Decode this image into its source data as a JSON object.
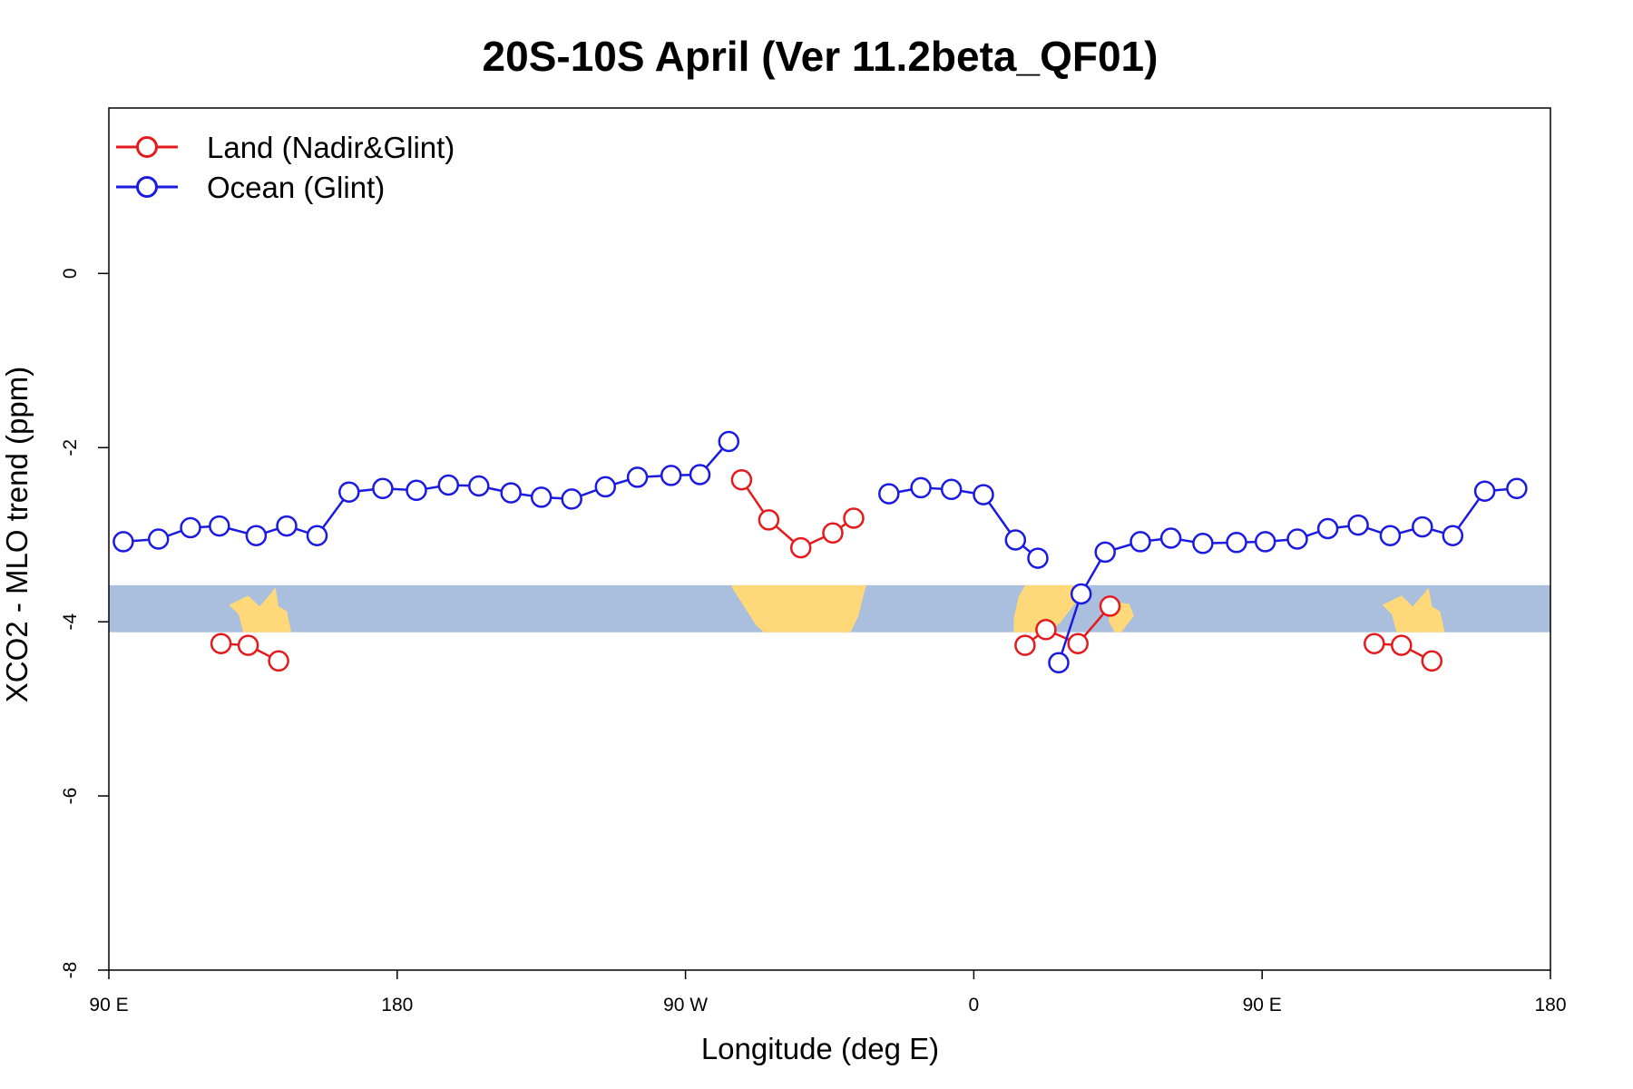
{
  "chart_data": {
    "type": "line",
    "title": "20S-10S April (Ver 11.2beta_QF01)",
    "xlabel": "Longitude (deg E)",
    "ylabel": "XCO2 - MLO trend (ppm)",
    "xlim": [
      90,
      540
    ],
    "ylim": [
      -8,
      1.9
    ],
    "x_ticks": [
      {
        "value": 90,
        "label": "90 E"
      },
      {
        "value": 180,
        "label": "180"
      },
      {
        "value": 270,
        "label": "90 W"
      },
      {
        "value": 360,
        "label": "0"
      },
      {
        "value": 450,
        "label": "90 E"
      },
      {
        "value": 540,
        "label": "180"
      }
    ],
    "y_ticks": [
      {
        "value": 0,
        "label": "0"
      },
      {
        "value": -2,
        "label": "-2"
      },
      {
        "value": -4,
        "label": "-4"
      },
      {
        "value": -6,
        "label": "-6"
      },
      {
        "value": -8,
        "label": "-8"
      }
    ],
    "legend": {
      "position": "top-left"
    },
    "map_strip": {
      "lat_range": "20S-10S",
      "y_top": -3.58,
      "y_bottom": -4.12,
      "ocean_color": "#a9bfdd",
      "land_color": "#ffd87a"
    },
    "series": [
      {
        "name": "Land (Nadir&Glint)",
        "color": "#e41a1c",
        "segments": [
          {
            "x": [
              125,
              133.5,
              143
            ],
            "y": [
              -4.25,
              -4.27,
              -4.45
            ]
          },
          {
            "x": [
              287.5,
              296,
              306,
              316,
              322.5
            ],
            "y": [
              -2.37,
              -2.83,
              -3.15,
              -2.98,
              -2.81
            ]
          },
          {
            "x": [
              376,
              382.5,
              392.5,
              402.5
            ],
            "y": [
              -4.27,
              -4.09,
              -4.25,
              -3.82
            ]
          },
          {
            "x": [
              485,
              493.5,
              503
            ],
            "y": [
              -4.25,
              -4.27,
              -4.45
            ]
          }
        ]
      },
      {
        "name": "Ocean (Glint)",
        "color": "#1a1ae0",
        "segments": [
          {
            "x": [
              94.5,
              105.5,
              115.5,
              124.5,
              136,
              145.5,
              155,
              165,
              175.5,
              186,
              196,
              205.5,
              215.5,
              225,
              234.5,
              245,
              255,
              265.5,
              274.5,
              283.5
            ],
            "y": [
              -3.08,
              -3.05,
              -2.92,
              -2.9,
              -3.01,
              -2.9,
              -3.01,
              -2.51,
              -2.47,
              -2.49,
              -2.43,
              -2.44,
              -2.52,
              -2.57,
              -2.59,
              -2.45,
              -2.34,
              -2.32,
              -2.31,
              -1.93
            ]
          },
          {
            "x": [
              333.5,
              343.5,
              353,
              363,
              373,
              380
            ],
            "y": [
              -2.53,
              -2.46,
              -2.48,
              -2.54,
              -3.06,
              -3.27
            ]
          },
          {
            "x": [
              386.5,
              393.5,
              401,
              412,
              421.5,
              431.5,
              442,
              451,
              461,
              470.5,
              480,
              490,
              500,
              509.5,
              519.5,
              529.5
            ],
            "y": [
              -4.47,
              -3.68,
              -3.2,
              -3.08,
              -3.04,
              -3.1,
              -3.09,
              -3.08,
              -3.05,
              -2.93,
              -2.89,
              -3.01,
              -2.91,
              -3.01,
              -2.5,
              -2.47
            ]
          }
        ]
      }
    ]
  }
}
